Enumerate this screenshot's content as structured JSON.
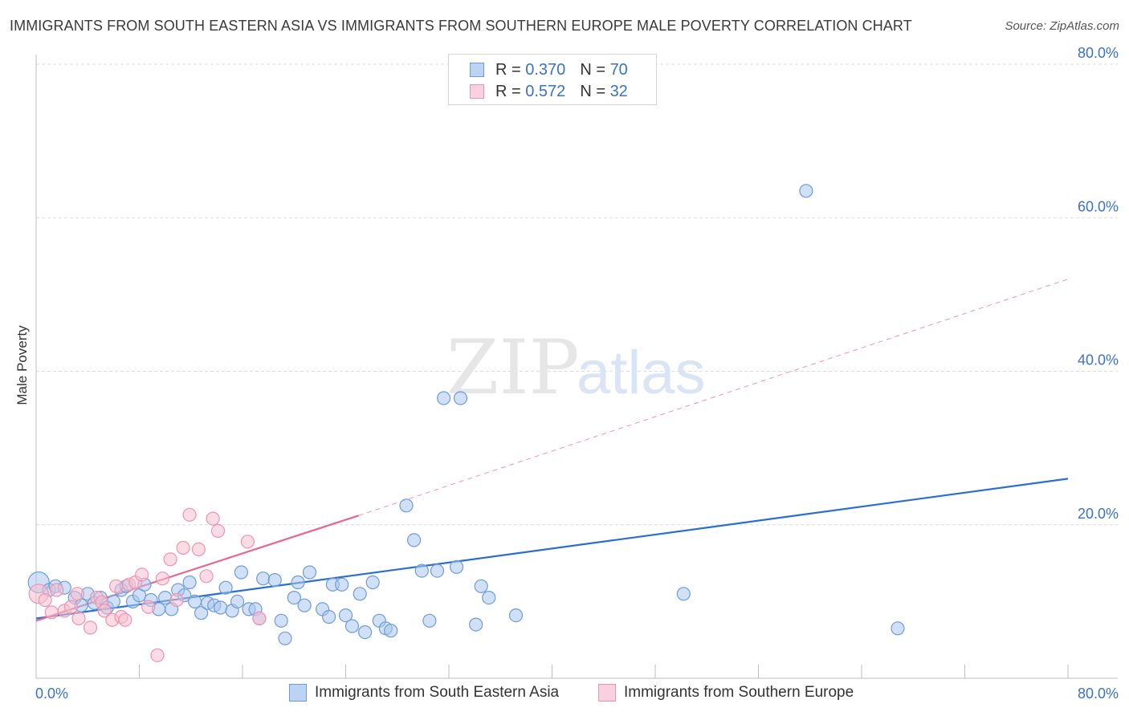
{
  "header": {
    "title": "IMMIGRANTS FROM SOUTH EASTERN ASIA VS IMMIGRANTS FROM SOUTHERN EUROPE MALE POVERTY CORRELATION CHART",
    "source": "Source: ZipAtlas.com"
  },
  "legend": {
    "rows": [
      {
        "r_label": "R =",
        "r_value": "0.370",
        "n_label": "N =",
        "n_value": "70"
      },
      {
        "r_label": "R =",
        "r_value": "0.572",
        "n_label": "N =",
        "n_value": "32"
      }
    ]
  },
  "bottom_legend": {
    "series1": "Immigrants from South Eastern Asia",
    "series2": "Immigrants from Southern Europe"
  },
  "watermark": {
    "zip": "ZIP",
    "atlas": "atlas"
  },
  "colors": {
    "blue_fill": "#a9c7ee",
    "blue_stroke": "#6f9cd8",
    "blue_line": "#2a6fd0",
    "pink_fill": "#f6bfd0",
    "pink_stroke": "#ee93b1",
    "pink_line": "#e8668f",
    "axis_label": "#3a72c8",
    "grid": "#dcdcdc"
  },
  "chart_data": {
    "type": "scatter",
    "title": "IMMIGRANTS FROM SOUTH EASTERN ASIA VS IMMIGRANTS FROM SOUTHERN EUROPE MALE POVERTY CORRELATION CHART",
    "xlabel": "",
    "ylabel": "Male Poverty",
    "xlim": [
      0,
      80
    ],
    "ylim": [
      0,
      80
    ],
    "x_tick_labels": [
      "0.0%",
      "80.0%"
    ],
    "y_tick_labels": [
      {
        "value": 20,
        "label": "20.0%"
      },
      {
        "value": 40,
        "label": "40.0%"
      },
      {
        "value": 60,
        "label": "60.0%"
      },
      {
        "value": 80,
        "label": "80.0%"
      }
    ],
    "series": [
      {
        "name": "Immigrants from South Eastern Asia",
        "color": "#a9c7ee",
        "R": 0.37,
        "N": 70,
        "trend": {
          "x0": 0,
          "y0": 7.8,
          "x1": 80,
          "y1": 26.0,
          "dashed_extension": false
        },
        "points": [
          [
            0.2,
            12.5
          ],
          [
            1.0,
            11.5
          ],
          [
            1.5,
            12
          ],
          [
            2.2,
            11.8
          ],
          [
            3.0,
            10.5
          ],
          [
            3.5,
            9.5
          ],
          [
            4.0,
            11
          ],
          [
            4.5,
            9.8
          ],
          [
            5.0,
            10.5
          ],
          [
            5.5,
            9.2
          ],
          [
            6.0,
            10
          ],
          [
            6.6,
            11.5
          ],
          [
            7.0,
            12
          ],
          [
            7.5,
            10
          ],
          [
            8.0,
            10.8
          ],
          [
            8.4,
            12.2
          ],
          [
            8.9,
            10.2
          ],
          [
            9.5,
            9
          ],
          [
            10.0,
            10.5
          ],
          [
            10.5,
            9
          ],
          [
            11.0,
            11.5
          ],
          [
            11.5,
            10.8
          ],
          [
            11.9,
            12.5
          ],
          [
            12.3,
            10
          ],
          [
            12.8,
            8.5
          ],
          [
            13.3,
            9.8
          ],
          [
            13.8,
            9.5
          ],
          [
            14.3,
            9.2
          ],
          [
            14.7,
            11.8
          ],
          [
            15.2,
            8.8
          ],
          [
            15.6,
            10
          ],
          [
            15.9,
            13.8
          ],
          [
            16.5,
            9
          ],
          [
            17.0,
            9
          ],
          [
            17.3,
            7.8
          ],
          [
            17.6,
            13
          ],
          [
            18.5,
            12.8
          ],
          [
            19.0,
            7.5
          ],
          [
            19.3,
            5.2
          ],
          [
            20.0,
            10.5
          ],
          [
            20.3,
            12.5
          ],
          [
            20.8,
            9.5
          ],
          [
            21.2,
            13.8
          ],
          [
            22.2,
            9
          ],
          [
            22.7,
            8
          ],
          [
            23.0,
            12.2
          ],
          [
            23.7,
            12.2
          ],
          [
            24.0,
            8.2
          ],
          [
            24.5,
            6.8
          ],
          [
            25.1,
            11
          ],
          [
            25.5,
            6
          ],
          [
            26.1,
            12.5
          ],
          [
            26.6,
            7.5
          ],
          [
            27.1,
            6.5
          ],
          [
            27.5,
            6.2
          ],
          [
            28.7,
            22.5
          ],
          [
            29.3,
            18
          ],
          [
            29.9,
            14
          ],
          [
            30.5,
            7.5
          ],
          [
            31.1,
            14
          ],
          [
            31.6,
            36.5
          ],
          [
            32.6,
            14.5
          ],
          [
            32.9,
            36.5
          ],
          [
            34.1,
            7
          ],
          [
            34.5,
            12
          ],
          [
            35.1,
            10.5
          ],
          [
            37.2,
            8.2
          ],
          [
            50.2,
            11
          ],
          [
            59.7,
            63.5
          ],
          [
            66.8,
            6.5
          ]
        ]
      },
      {
        "name": "Immigrants from Southern Europe",
        "color": "#f6bfd0",
        "R": 0.572,
        "N": 32,
        "trend": {
          "x0": 0,
          "y0": 7.5,
          "x1": 25,
          "y1": 21.2,
          "dashed_extension": true,
          "ext_x1": 80,
          "ext_y1": 52
        },
        "points": [
          [
            0.2,
            11
          ],
          [
            0.7,
            10.2
          ],
          [
            1.2,
            8.6
          ],
          [
            1.6,
            11.5
          ],
          [
            2.2,
            8.8
          ],
          [
            2.7,
            9.3
          ],
          [
            3.2,
            11
          ],
          [
            3.3,
            7.8
          ],
          [
            4.2,
            6.6
          ],
          [
            4.7,
            10.5
          ],
          [
            5.1,
            9.9
          ],
          [
            5.3,
            8.8
          ],
          [
            5.9,
            7.6
          ],
          [
            6.2,
            12
          ],
          [
            6.6,
            8
          ],
          [
            6.9,
            7.6
          ],
          [
            7.2,
            12.2
          ],
          [
            7.7,
            12.5
          ],
          [
            8.2,
            13.5
          ],
          [
            8.7,
            9.3
          ],
          [
            9.4,
            3
          ],
          [
            9.8,
            13
          ],
          [
            10.4,
            15.5
          ],
          [
            10.9,
            10.2
          ],
          [
            11.4,
            17
          ],
          [
            11.9,
            21.3
          ],
          [
            12.6,
            16.8
          ],
          [
            13.2,
            13.3
          ],
          [
            13.7,
            20.8
          ],
          [
            14.1,
            19.2
          ],
          [
            16.4,
            17.8
          ],
          [
            17.3,
            7.8
          ]
        ]
      }
    ]
  }
}
